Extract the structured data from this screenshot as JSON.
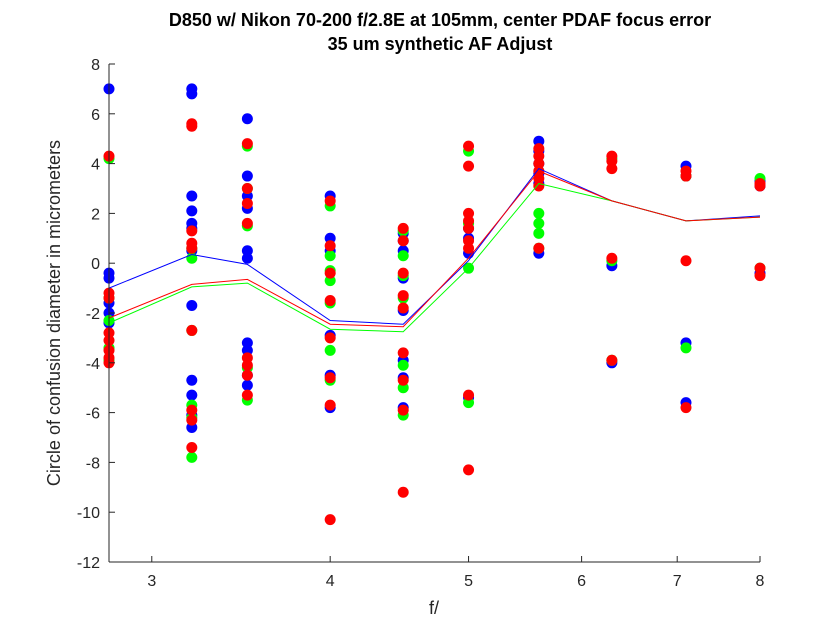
{
  "chart_data": {
    "type": "scatter",
    "title": "D850 w/ Nikon 70-200 f/2.8E at 105mm, center PDAF focus error",
    "subtitle": "35 um synthetic AF Adjust",
    "xlabel": "f/",
    "ylabel": "Circle of confusion diameter in micrometers",
    "x_scale": "log",
    "xlim": [
      2.8,
      8
    ],
    "ylim": [
      -12,
      8
    ],
    "x_ticks": [
      3,
      4,
      5,
      6,
      7,
      8
    ],
    "y_ticks": [
      -12,
      -10,
      -8,
      -6,
      -4,
      -2,
      0,
      2,
      4,
      6,
      8
    ],
    "grid": false,
    "series": [
      {
        "color": "#0000ff",
        "points": [
          [
            2.8,
            7.0
          ],
          [
            2.8,
            -0.4
          ],
          [
            2.8,
            -0.6
          ],
          [
            2.8,
            -1.6
          ],
          [
            2.8,
            -2.0
          ],
          [
            2.8,
            -2.4
          ],
          [
            3.2,
            7.0
          ],
          [
            3.2,
            6.8
          ],
          [
            3.2,
            2.7
          ],
          [
            3.2,
            2.1
          ],
          [
            3.2,
            1.6
          ],
          [
            3.2,
            1.4
          ],
          [
            3.2,
            0.5
          ],
          [
            3.2,
            -1.7
          ],
          [
            3.2,
            -4.7
          ],
          [
            3.2,
            -5.3
          ],
          [
            3.2,
            -6.1
          ],
          [
            3.2,
            -6.6
          ],
          [
            3.5,
            5.8
          ],
          [
            3.5,
            3.5
          ],
          [
            3.5,
            2.7
          ],
          [
            3.5,
            2.2
          ],
          [
            3.5,
            0.5
          ],
          [
            3.5,
            0.2
          ],
          [
            3.5,
            -3.2
          ],
          [
            3.5,
            -3.5
          ],
          [
            3.5,
            -4.5
          ],
          [
            3.5,
            -4.9
          ],
          [
            4.0,
            2.7
          ],
          [
            4.0,
            1.0
          ],
          [
            4.0,
            0.5
          ],
          [
            4.0,
            -2.9
          ],
          [
            4.0,
            -4.5
          ],
          [
            4.0,
            -5.8
          ],
          [
            4.5,
            1.2
          ],
          [
            4.5,
            0.9
          ],
          [
            4.5,
            0.5
          ],
          [
            4.5,
            -0.6
          ],
          [
            4.5,
            -1.9
          ],
          [
            4.5,
            -3.9
          ],
          [
            4.5,
            -4.6
          ],
          [
            4.5,
            -5.8
          ],
          [
            5.0,
            1.4
          ],
          [
            5.0,
            1.0
          ],
          [
            5.0,
            0.4
          ],
          [
            5.0,
            -5.4
          ],
          [
            5.6,
            4.9
          ],
          [
            5.6,
            4.5
          ],
          [
            5.6,
            4.0
          ],
          [
            5.6,
            3.6
          ],
          [
            5.6,
            3.2
          ],
          [
            5.6,
            0.4
          ],
          [
            6.3,
            -0.1
          ],
          [
            6.3,
            -4.0
          ],
          [
            7.1,
            3.9
          ],
          [
            7.1,
            3.5
          ],
          [
            7.1,
            -3.2
          ],
          [
            7.1,
            -5.6
          ],
          [
            8.0,
            3.3
          ],
          [
            8.0,
            3.1
          ],
          [
            8.0,
            -0.4
          ]
        ],
        "mean": [
          [
            2.8,
            -1.0
          ],
          [
            3.2,
            0.35
          ],
          [
            3.5,
            -0.05
          ],
          [
            4.0,
            -2.3
          ],
          [
            4.5,
            -2.45
          ],
          [
            5.0,
            0.1
          ],
          [
            5.6,
            3.8
          ],
          [
            6.3,
            2.5
          ],
          [
            7.1,
            1.7
          ],
          [
            8.0,
            1.9
          ]
        ]
      },
      {
        "color": "#00ff00",
        "points": [
          [
            2.8,
            4.2
          ],
          [
            2.8,
            -1.4
          ],
          [
            2.8,
            -2.3
          ],
          [
            2.8,
            -3.4
          ],
          [
            2.8,
            -3.9
          ],
          [
            3.2,
            0.6
          ],
          [
            3.2,
            0.2
          ],
          [
            3.2,
            -2.7
          ],
          [
            3.2,
            -5.7
          ],
          [
            3.2,
            -6.2
          ],
          [
            3.2,
            -7.8
          ],
          [
            3.5,
            4.7
          ],
          [
            3.5,
            3.0
          ],
          [
            3.5,
            1.5
          ],
          [
            3.5,
            -4.2
          ],
          [
            3.5,
            -5.5
          ],
          [
            4.0,
            2.3
          ],
          [
            4.0,
            0.3
          ],
          [
            4.0,
            -0.3
          ],
          [
            4.0,
            -0.7
          ],
          [
            4.0,
            -1.6
          ],
          [
            4.0,
            -3.5
          ],
          [
            4.0,
            -4.7
          ],
          [
            4.5,
            1.3
          ],
          [
            4.5,
            0.3
          ],
          [
            4.5,
            -0.5
          ],
          [
            4.5,
            -1.4
          ],
          [
            4.5,
            -4.1
          ],
          [
            4.5,
            -5.0
          ],
          [
            4.5,
            -6.1
          ],
          [
            5.0,
            4.5
          ],
          [
            5.0,
            1.6
          ],
          [
            5.0,
            -0.2
          ],
          [
            5.0,
            -5.6
          ],
          [
            5.6,
            2.0
          ],
          [
            5.6,
            1.6
          ],
          [
            5.6,
            1.2
          ],
          [
            5.6,
            0.6
          ],
          [
            6.3,
            4.2
          ],
          [
            6.3,
            0.1
          ],
          [
            6.3,
            -3.9
          ],
          [
            7.1,
            3.5
          ],
          [
            7.1,
            -3.4
          ],
          [
            8.0,
            3.4
          ],
          [
            8.0,
            -0.2
          ]
        ],
        "mean": [
          [
            2.8,
            -2.4
          ],
          [
            3.2,
            -0.95
          ],
          [
            3.5,
            -0.8
          ],
          [
            4.0,
            -2.65
          ],
          [
            4.5,
            -2.75
          ],
          [
            5.0,
            -0.2
          ],
          [
            5.6,
            3.2
          ],
          [
            6.3,
            2.5
          ],
          [
            7.1,
            1.7
          ],
          [
            8.0,
            1.85
          ]
        ]
      },
      {
        "color": "#ff0000",
        "points": [
          [
            2.8,
            4.3
          ],
          [
            2.8,
            -1.2
          ],
          [
            2.8,
            -1.4
          ],
          [
            2.8,
            -2.8
          ],
          [
            2.8,
            -3.1
          ],
          [
            2.8,
            -3.5
          ],
          [
            2.8,
            -3.8
          ],
          [
            2.8,
            -4.0
          ],
          [
            3.2,
            5.6
          ],
          [
            3.2,
            5.5
          ],
          [
            3.2,
            1.3
          ],
          [
            3.2,
            0.8
          ],
          [
            3.2,
            0.6
          ],
          [
            3.2,
            -2.7
          ],
          [
            3.2,
            -5.9
          ],
          [
            3.2,
            -6.3
          ],
          [
            3.2,
            -7.4
          ],
          [
            3.5,
            4.8
          ],
          [
            3.5,
            3.0
          ],
          [
            3.5,
            2.4
          ],
          [
            3.5,
            1.6
          ],
          [
            3.5,
            -3.8
          ],
          [
            3.5,
            -4.1
          ],
          [
            3.5,
            -4.5
          ],
          [
            3.5,
            -5.3
          ],
          [
            4.0,
            2.5
          ],
          [
            4.0,
            0.7
          ],
          [
            4.0,
            -0.4
          ],
          [
            4.0,
            -1.5
          ],
          [
            4.0,
            -3.0
          ],
          [
            4.0,
            -4.6
          ],
          [
            4.0,
            -5.7
          ],
          [
            4.0,
            -10.3
          ],
          [
            4.5,
            1.4
          ],
          [
            4.5,
            0.9
          ],
          [
            4.5,
            -0.4
          ],
          [
            4.5,
            -1.3
          ],
          [
            4.5,
            -1.8
          ],
          [
            4.5,
            -3.6
          ],
          [
            4.5,
            -4.7
          ],
          [
            4.5,
            -5.9
          ],
          [
            4.5,
            -9.2
          ],
          [
            5.0,
            4.7
          ],
          [
            5.0,
            3.9
          ],
          [
            5.0,
            2.0
          ],
          [
            5.0,
            1.7
          ],
          [
            5.0,
            1.4
          ],
          [
            5.0,
            0.9
          ],
          [
            5.0,
            0.6
          ],
          [
            5.0,
            -5.3
          ],
          [
            5.0,
            -8.3
          ],
          [
            5.6,
            4.6
          ],
          [
            5.6,
            4.3
          ],
          [
            5.6,
            4.0
          ],
          [
            5.6,
            3.7
          ],
          [
            5.6,
            3.4
          ],
          [
            5.6,
            3.1
          ],
          [
            5.6,
            0.6
          ],
          [
            6.3,
            4.3
          ],
          [
            6.3,
            4.1
          ],
          [
            6.3,
            3.8
          ],
          [
            6.3,
            0.2
          ],
          [
            6.3,
            -3.9
          ],
          [
            7.1,
            3.7
          ],
          [
            7.1,
            3.5
          ],
          [
            7.1,
            0.1
          ],
          [
            7.1,
            -5.8
          ],
          [
            8.0,
            3.2
          ],
          [
            8.0,
            3.1
          ],
          [
            8.0,
            -0.2
          ],
          [
            8.0,
            -0.5
          ]
        ],
        "mean": [
          [
            2.8,
            -2.2
          ],
          [
            3.2,
            -0.85
          ],
          [
            3.5,
            -0.65
          ],
          [
            4.0,
            -2.45
          ],
          [
            4.5,
            -2.55
          ],
          [
            5.0,
            0.2
          ],
          [
            5.6,
            3.7
          ],
          [
            6.3,
            2.5
          ],
          [
            7.1,
            1.7
          ],
          [
            8.0,
            1.85
          ]
        ]
      }
    ]
  }
}
